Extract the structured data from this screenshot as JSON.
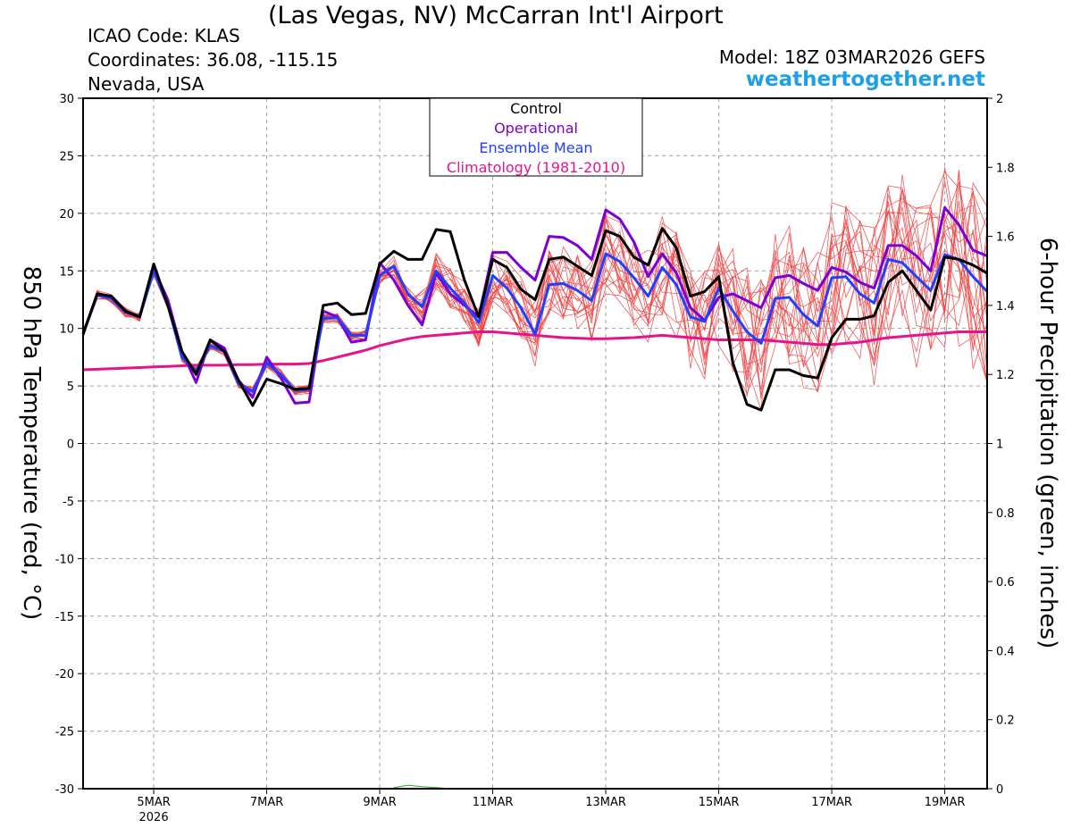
{
  "header": {
    "title": "(Las Vegas, NV) McCarran Int'l Airport",
    "icao": "ICAO Code: KLAS",
    "coords": "Coordinates: 36.08, -115.15",
    "region": "Nevada, USA",
    "model": "Model: 18Z 03MAR2026 GEFS",
    "brand": "weathertogether.net"
  },
  "colors": {
    "control": "#000000",
    "operational": "#7a00d6",
    "ensemble_mean": "#2040ff",
    "climatology": "#e6148c",
    "members": "#f04040",
    "precip": "#20b020",
    "brand": "#1ea0e6"
  },
  "chart_data": {
    "type": "line",
    "xlabel": "",
    "ylabel": "850 hPa Temperature (red, °C)",
    "y2label": "6-hour Precipitation (green, inches)",
    "ylim": [
      -30,
      30
    ],
    "y2lim": [
      0,
      2
    ],
    "yticks": [
      "30",
      "25",
      "20",
      "15",
      "10",
      "5",
      "0",
      "-5",
      "-10",
      "-15",
      "-20",
      "-25",
      "-30"
    ],
    "y2ticks": [
      "2",
      "1.8",
      "1.6",
      "1.4",
      "1.2",
      "1",
      "0.8",
      "0.6",
      "0.4",
      "0.2",
      "0"
    ],
    "xlim": [
      3.75,
      19.75
    ],
    "xticks": [
      {
        "x": 5,
        "label": "5MAR",
        "sub": "2026"
      },
      {
        "x": 7,
        "label": "7MAR",
        "sub": ""
      },
      {
        "x": 9,
        "label": "9MAR",
        "sub": ""
      },
      {
        "x": 11,
        "label": "11MAR",
        "sub": ""
      },
      {
        "x": 13,
        "label": "13MAR",
        "sub": ""
      },
      {
        "x": 15,
        "label": "15MAR",
        "sub": ""
      },
      {
        "x": 17,
        "label": "17MAR",
        "sub": ""
      },
      {
        "x": 19,
        "label": "19MAR",
        "sub": ""
      }
    ],
    "grid": true,
    "legend": {
      "position": "top-center",
      "entries": [
        "Control",
        "Operational",
        "Ensemble Mean",
        "Climatology (1981-2010)"
      ]
    },
    "x": [
      3.75,
      4.0,
      4.25,
      4.5,
      4.75,
      5.0,
      5.25,
      5.5,
      5.75,
      6.0,
      6.25,
      6.5,
      6.75,
      7.0,
      7.25,
      7.5,
      7.75,
      8.0,
      8.25,
      8.5,
      8.75,
      9.0,
      9.25,
      9.5,
      9.75,
      10.0,
      10.25,
      10.5,
      10.75,
      11.0,
      11.25,
      11.5,
      11.75,
      12.0,
      12.25,
      12.5,
      12.75,
      13.0,
      13.25,
      13.5,
      13.75,
      14.0,
      14.25,
      14.5,
      14.75,
      15.0,
      15.25,
      15.5,
      15.75,
      16.0,
      16.25,
      16.5,
      16.75,
      17.0,
      17.25,
      17.5,
      17.75,
      18.0,
      18.25,
      18.5,
      18.75,
      19.0,
      19.25,
      19.5,
      19.75
    ],
    "series": [
      {
        "name": "Control",
        "values": [
          9.5,
          13.0,
          12.8,
          11.5,
          11.0,
          15.6,
          12.0,
          8.0,
          6.0,
          9.0,
          8.0,
          5.5,
          3.3,
          5.6,
          5.2,
          4.7,
          4.8,
          12.0,
          12.2,
          11.2,
          11.3,
          15.6,
          16.7,
          16.0,
          16.0,
          18.6,
          18.4,
          14.2,
          11.0,
          16.0,
          15.3,
          13.4,
          12.5,
          16.0,
          16.2,
          15.4,
          14.6,
          18.5,
          18.0,
          16.2,
          15.5,
          18.7,
          17.0,
          12.8,
          13.2,
          14.5,
          7.0,
          3.4,
          2.9,
          6.4,
          6.4,
          5.9,
          5.7,
          9.2,
          10.8,
          10.8,
          11.1,
          14.0,
          15.0,
          13.3,
          11.6,
          16.2,
          16.0,
          15.5,
          14.8
        ]
      },
      {
        "name": "Operational",
        "values": [
          9.5,
          13.0,
          12.8,
          11.5,
          11.0,
          15.2,
          12.5,
          8.0,
          5.3,
          9.0,
          8.3,
          5.5,
          4.0,
          7.5,
          5.7,
          3.5,
          3.6,
          11.5,
          11.0,
          8.8,
          9.0,
          15.7,
          14.2,
          12.0,
          10.3,
          14.8,
          13.0,
          12.0,
          11.0,
          16.6,
          16.6,
          15.3,
          14.2,
          18.0,
          17.9,
          17.2,
          16.0,
          20.3,
          19.5,
          17.5,
          14.5,
          16.5,
          14.8,
          11.8,
          10.7,
          12.7,
          13.0,
          12.4,
          11.8,
          14.4,
          14.6,
          13.9,
          13.3,
          15.3,
          14.9,
          14.0,
          13.5,
          17.2,
          17.2,
          16.3,
          15.0,
          20.5,
          19.0,
          16.8,
          16.3
        ]
      },
      {
        "name": "Ensemble Mean",
        "values": [
          9.5,
          12.9,
          12.6,
          11.4,
          11.0,
          15.0,
          12.0,
          7.5,
          6.3,
          8.5,
          8.0,
          5.2,
          4.5,
          7.0,
          6.0,
          4.6,
          4.7,
          10.9,
          10.9,
          9.4,
          9.4,
          14.6,
          15.4,
          13.0,
          11.9,
          15.0,
          13.5,
          12.2,
          10.5,
          14.6,
          13.5,
          11.8,
          9.5,
          13.8,
          13.9,
          13.3,
          12.4,
          16.5,
          15.8,
          14.4,
          12.8,
          15.3,
          13.8,
          11.0,
          10.6,
          13.5,
          11.5,
          9.7,
          8.7,
          12.6,
          12.7,
          11.2,
          10.2,
          14.4,
          14.5,
          13.0,
          12.2,
          16.0,
          15.7,
          14.5,
          13.3,
          16.4,
          16.0,
          14.5,
          13.2
        ]
      },
      {
        "name": "Climatology (1981-2010)",
        "values": [
          6.4,
          6.45,
          6.5,
          6.55,
          6.6,
          6.65,
          6.7,
          6.75,
          6.8,
          6.8,
          6.8,
          6.85,
          6.85,
          6.9,
          6.9,
          6.9,
          6.95,
          7.2,
          7.5,
          7.8,
          8.1,
          8.5,
          8.8,
          9.1,
          9.3,
          9.4,
          9.5,
          9.6,
          9.7,
          9.7,
          9.6,
          9.5,
          9.4,
          9.3,
          9.2,
          9.15,
          9.1,
          9.1,
          9.15,
          9.2,
          9.3,
          9.4,
          9.3,
          9.2,
          9.1,
          9.0,
          9.0,
          9.0,
          9.0,
          8.9,
          8.8,
          8.7,
          8.6,
          8.6,
          8.7,
          8.8,
          9.0,
          9.2,
          9.3,
          9.4,
          9.5,
          9.6,
          9.7,
          9.7,
          9.7
        ]
      }
    ],
    "precip": {
      "x": [
        9.25,
        9.5,
        9.75,
        10.0,
        10.25
      ],
      "values": [
        0.003,
        0.01,
        0.006,
        0.003,
        0.0
      ]
    }
  }
}
